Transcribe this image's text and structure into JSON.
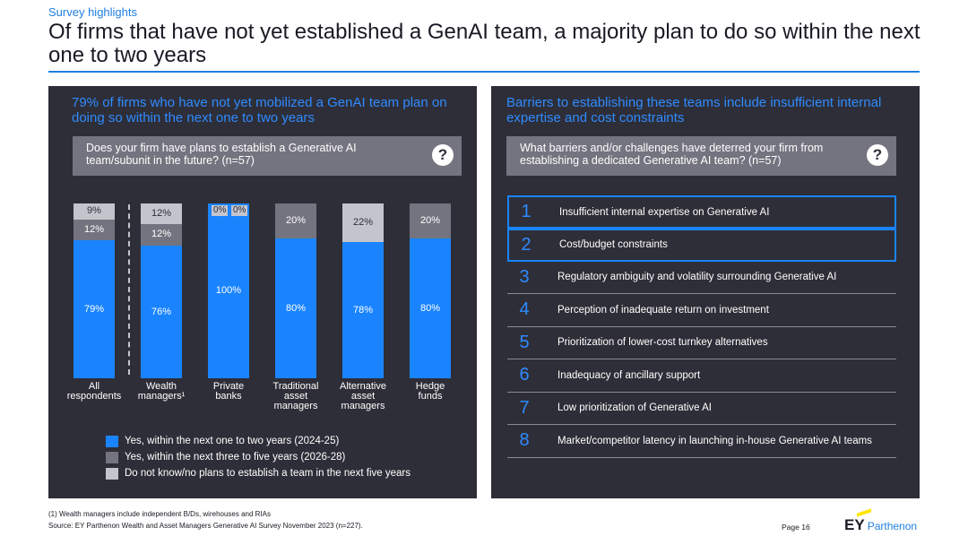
{
  "header": {
    "eyebrow": "Survey highlights",
    "title": "Of firms that have not yet established a GenAI team, a majority plan to do so within the next one to two years"
  },
  "left_panel": {
    "title": "79% of firms who have not yet mobilized a GenAI team plan on doing so within the next one to two years",
    "question": "Does your firm have plans to establish a Generative AI team/subunit in the future? (n=57)",
    "help_icon": "?"
  },
  "chart_data": {
    "type": "bar",
    "stacked": true,
    "categories": [
      [
        "All",
        "respondents"
      ],
      [
        "Wealth",
        "managers¹"
      ],
      [
        "Private",
        "banks"
      ],
      [
        "Traditional",
        "asset",
        "managers"
      ],
      [
        "Alternative",
        "asset",
        "managers"
      ],
      [
        "Hedge",
        "funds"
      ]
    ],
    "series": [
      {
        "name": "Yes, within the next one to two years (2024-25)",
        "color": "#1a84ff",
        "values": [
          79,
          76,
          100,
          80,
          78,
          80
        ]
      },
      {
        "name": "Yes, within the next three to five years (2026-28)",
        "color": "#747480",
        "values": [
          12,
          12,
          0,
          20,
          0,
          20
        ]
      },
      {
        "name": "Do not know/no plans to establish a team in the next five years",
        "color": "#c4c4cd",
        "values": [
          9,
          12,
          0,
          0,
          22,
          0
        ]
      }
    ],
    "zero_labels": [
      "0%",
      "0%"
    ],
    "ylim": [
      0,
      100
    ]
  },
  "right_panel": {
    "title": "Barriers to establishing these teams include insufficient internal expertise and cost constraints",
    "question": "What barriers and/or challenges have deterred your firm from establishing a dedicated Generative AI team? (n=57)",
    "help_icon": "?",
    "barriers": [
      {
        "num": "1",
        "text": "Insufficient internal expertise on Generative AI"
      },
      {
        "num": "2",
        "text": "Cost/budget constraints"
      },
      {
        "num": "3",
        "text": "Regulatory ambiguity and volatility surrounding Generative AI"
      },
      {
        "num": "4",
        "text": "Perception of inadequate return on investment"
      },
      {
        "num": "5",
        "text": "Prioritization of lower-cost turnkey alternatives"
      },
      {
        "num": "6",
        "text": "Inadequacy of ancillary support"
      },
      {
        "num": "7",
        "text": "Low prioritization of Generative AI"
      },
      {
        "num": "8",
        "text": "Market/competitor latency in launching in-house Generative AI teams"
      }
    ]
  },
  "footer": {
    "footnote": "(1) Wealth managers include independent B/Ds, wirehouses and RIAs",
    "source": "Source: EY Parthenon Wealth and Asset Managers Generative AI Survey November 2023 (n=227).",
    "page": "Page 16",
    "logo_ey": "EY",
    "logo_parthenon": "Parthenon"
  }
}
